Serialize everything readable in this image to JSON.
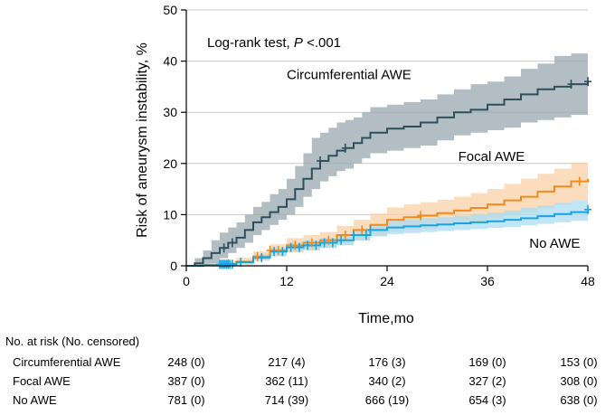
{
  "chart_data": {
    "type": "line",
    "subtype": "kaplan-meier-cumulative-incidence",
    "annotation": "Log-rank test, P <.001",
    "annotation_prefix": "Log-rank test, ",
    "annotation_p": "P",
    "annotation_suffix": " <.001",
    "xlabel": "Time,mo",
    "ylabel": "Risk of aneurysm instability, %",
    "xlim": [
      0,
      48
    ],
    "ylim": [
      0,
      50
    ],
    "xticks": [
      0,
      12,
      24,
      36,
      48
    ],
    "yticks": [
      0,
      10,
      20,
      30,
      40,
      50
    ],
    "grid": "horizontal",
    "series": [
      {
        "name": "Circumferential AWE",
        "color": "#2f4f5c",
        "band_color": "#98a8b0",
        "x": [
          0,
          1,
          2,
          3,
          4,
          5,
          6,
          7,
          8,
          9,
          10,
          11,
          12,
          13,
          14,
          15,
          16,
          17,
          18,
          19,
          20,
          21,
          22,
          24,
          26,
          28,
          30,
          32,
          34,
          36,
          38,
          40,
          42,
          44,
          46,
          48
        ],
        "y": [
          0,
          0.5,
          1.5,
          2.5,
          3.5,
          4.5,
          5.5,
          7,
          8.5,
          9.5,
          10.5,
          11.5,
          13,
          15,
          17,
          19,
          20.5,
          21.5,
          22.5,
          23,
          24,
          25,
          26,
          26.8,
          27.2,
          28,
          29,
          30,
          30.5,
          31.5,
          32.5,
          33.5,
          34.5,
          35,
          35.5,
          36
        ],
        "lower": [
          0,
          0,
          0,
          0.5,
          1.5,
          2.5,
          3.5,
          4.5,
          6,
          7,
          8,
          9,
          10,
          11.5,
          13.5,
          15,
          16.5,
          17.5,
          18.5,
          19,
          20,
          21,
          22,
          22.5,
          23,
          23.5,
          24.5,
          25.5,
          26,
          26.5,
          27,
          28,
          28.5,
          29,
          29.5,
          30
        ],
        "upper": [
          0,
          1.5,
          3,
          5,
          6.5,
          7.5,
          8.5,
          10,
          11.5,
          12.5,
          14,
          15,
          17,
          19.5,
          22,
          25,
          26,
          27,
          28,
          28.5,
          29,
          30,
          31,
          31.5,
          32,
          32.5,
          33.5,
          34.5,
          35.5,
          36,
          37,
          38.5,
          39.5,
          41,
          41.5,
          42
        ],
        "censor": [
          4.5,
          5.5,
          16,
          19,
          46,
          48
        ],
        "label_x": 12,
        "label_y": 36.5
      },
      {
        "name": "Focal AWE",
        "color": "#ef8c1f",
        "band_color": "#f9d0a6",
        "x": [
          0,
          2,
          4,
          6,
          8,
          10,
          12,
          14,
          16,
          18,
          20,
          22,
          24,
          26,
          28,
          30,
          32,
          34,
          36,
          38,
          40,
          42,
          44,
          46,
          48
        ],
        "y": [
          0,
          0.2,
          0.4,
          0.8,
          1.8,
          3,
          4,
          4.5,
          5,
          6,
          7,
          8,
          9,
          9.5,
          9.8,
          10.3,
          10.8,
          11.3,
          12,
          12.8,
          13.5,
          14.5,
          15.5,
          16.5,
          17
        ],
        "lower": [
          0,
          0,
          0,
          0.2,
          1,
          1.8,
          2.6,
          3,
          3.5,
          4.2,
          5,
          5.8,
          6.6,
          7,
          7.3,
          7.8,
          8.2,
          8.6,
          9.2,
          9.8,
          10.4,
          11.2,
          12,
          12.8,
          13.2
        ],
        "upper": [
          0,
          0.5,
          1,
          1.6,
          2.8,
          4.2,
          5.4,
          6,
          6.6,
          7.8,
          9,
          10.2,
          11.4,
          12,
          12.4,
          12.9,
          13.5,
          14.2,
          15,
          16,
          17,
          18,
          19,
          20.2,
          21
        ],
        "censor": [
          5,
          8.5,
          10,
          11,
          13,
          15,
          17,
          19,
          21,
          28,
          47
        ],
        "label_x": 32.5,
        "label_y": 20.5
      },
      {
        "name": "No AWE",
        "color": "#1aa3e0",
        "band_color": "#a9dcf3",
        "x": [
          0,
          2,
          4,
          6,
          8,
          10,
          12,
          14,
          16,
          18,
          20,
          22,
          24,
          26,
          28,
          30,
          32,
          34,
          36,
          38,
          40,
          42,
          44,
          46,
          48
        ],
        "y": [
          0,
          0.1,
          0.3,
          0.7,
          1.6,
          2.8,
          3.6,
          4,
          4.5,
          5,
          6,
          7,
          7.5,
          7.7,
          7.9,
          8.1,
          8.3,
          8.5,
          8.7,
          9,
          9.3,
          9.7,
          10.1,
          10.5,
          11
        ],
        "lower": [
          0,
          0,
          0.1,
          0.3,
          1,
          2,
          2.8,
          3.1,
          3.5,
          4,
          4.9,
          5.8,
          6.2,
          6.4,
          6.6,
          6.8,
          7,
          7.2,
          7.4,
          7.6,
          7.9,
          8.2,
          8.5,
          8.8,
          9.2
        ],
        "upper": [
          0,
          0.3,
          0.6,
          1.1,
          2.2,
          3.6,
          4.5,
          5,
          5.5,
          6.1,
          7.2,
          8.2,
          8.8,
          9.1,
          9.3,
          9.5,
          9.8,
          10.1,
          10.4,
          10.8,
          11.3,
          11.8,
          12.3,
          12.8,
          13.4
        ],
        "censor": [
          4,
          4.2,
          4.4,
          4.6,
          4.8,
          5,
          5.2,
          5.5,
          6.5,
          9,
          10.5,
          11.5,
          12.5,
          13.5,
          14.5,
          15.5,
          16.5,
          17.5,
          18.5,
          20,
          21.5,
          22,
          48
        ],
        "label_x": 41,
        "label_y": 3.5
      }
    ]
  },
  "risk_table": {
    "title": "No. at risk (No. censored)",
    "timepoints": [
      0,
      12,
      24,
      36,
      48
    ],
    "rows": [
      {
        "label": "Circumferential AWE",
        "values": [
          "248 (0)",
          "217 (4)",
          "176 (3)",
          "169 (0)",
          "153 (0)"
        ]
      },
      {
        "label": "Focal AWE",
        "values": [
          "387 (0)",
          "362 (11)",
          "340 (2)",
          "327 (2)",
          "308 (0)"
        ]
      },
      {
        "label": "No AWE",
        "values": [
          "781 (0)",
          "714 (39)",
          "666 (19)",
          "654 (3)",
          "638 (0)"
        ]
      }
    ]
  }
}
